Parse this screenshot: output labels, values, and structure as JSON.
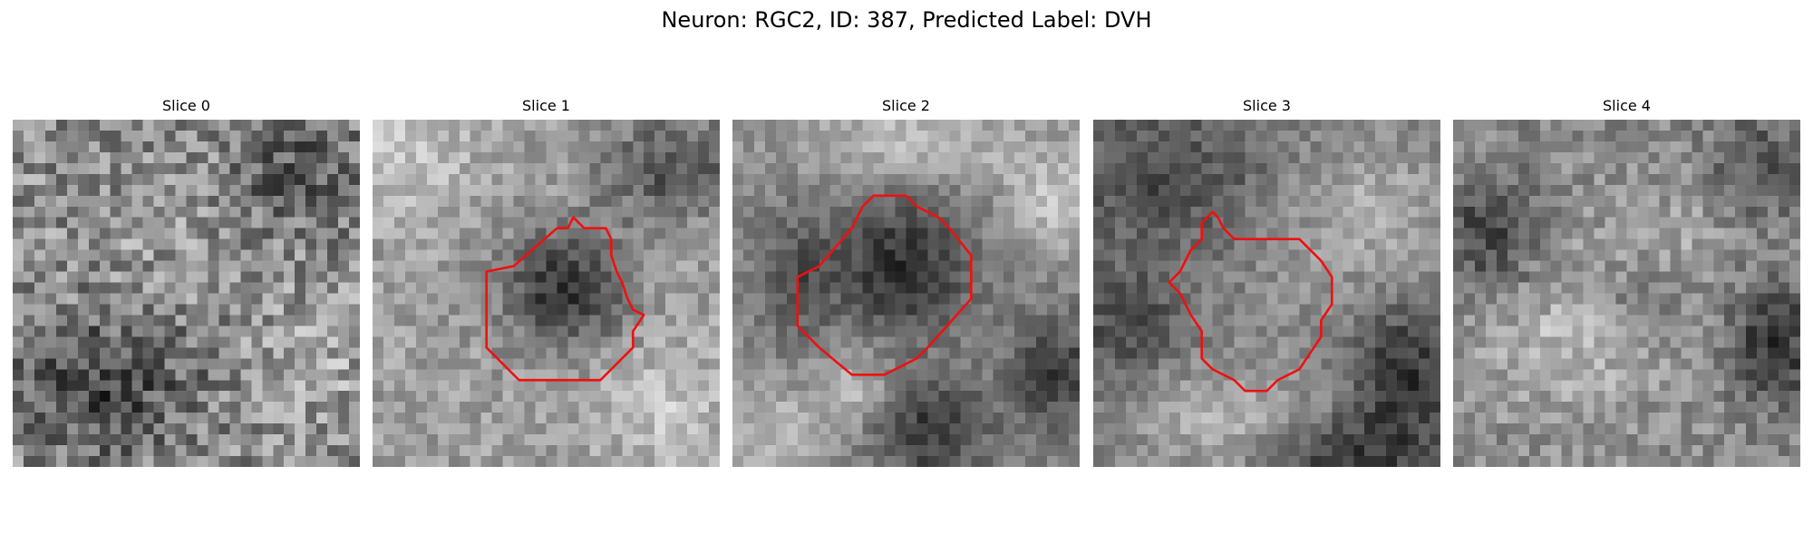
{
  "figure": {
    "title": "Neuron: RGC2, ID: 387, Predicted Label: DVH",
    "outline_color": "#ee1111",
    "colormap": "grayscale",
    "slices": [
      {
        "label": "Slice 0",
        "has_outline": false
      },
      {
        "label": "Slice 1",
        "has_outline": true
      },
      {
        "label": "Slice 2",
        "has_outline": true
      },
      {
        "label": "Slice 3",
        "has_outline": true
      },
      {
        "label": "Slice 4",
        "has_outline": false
      }
    ]
  }
}
